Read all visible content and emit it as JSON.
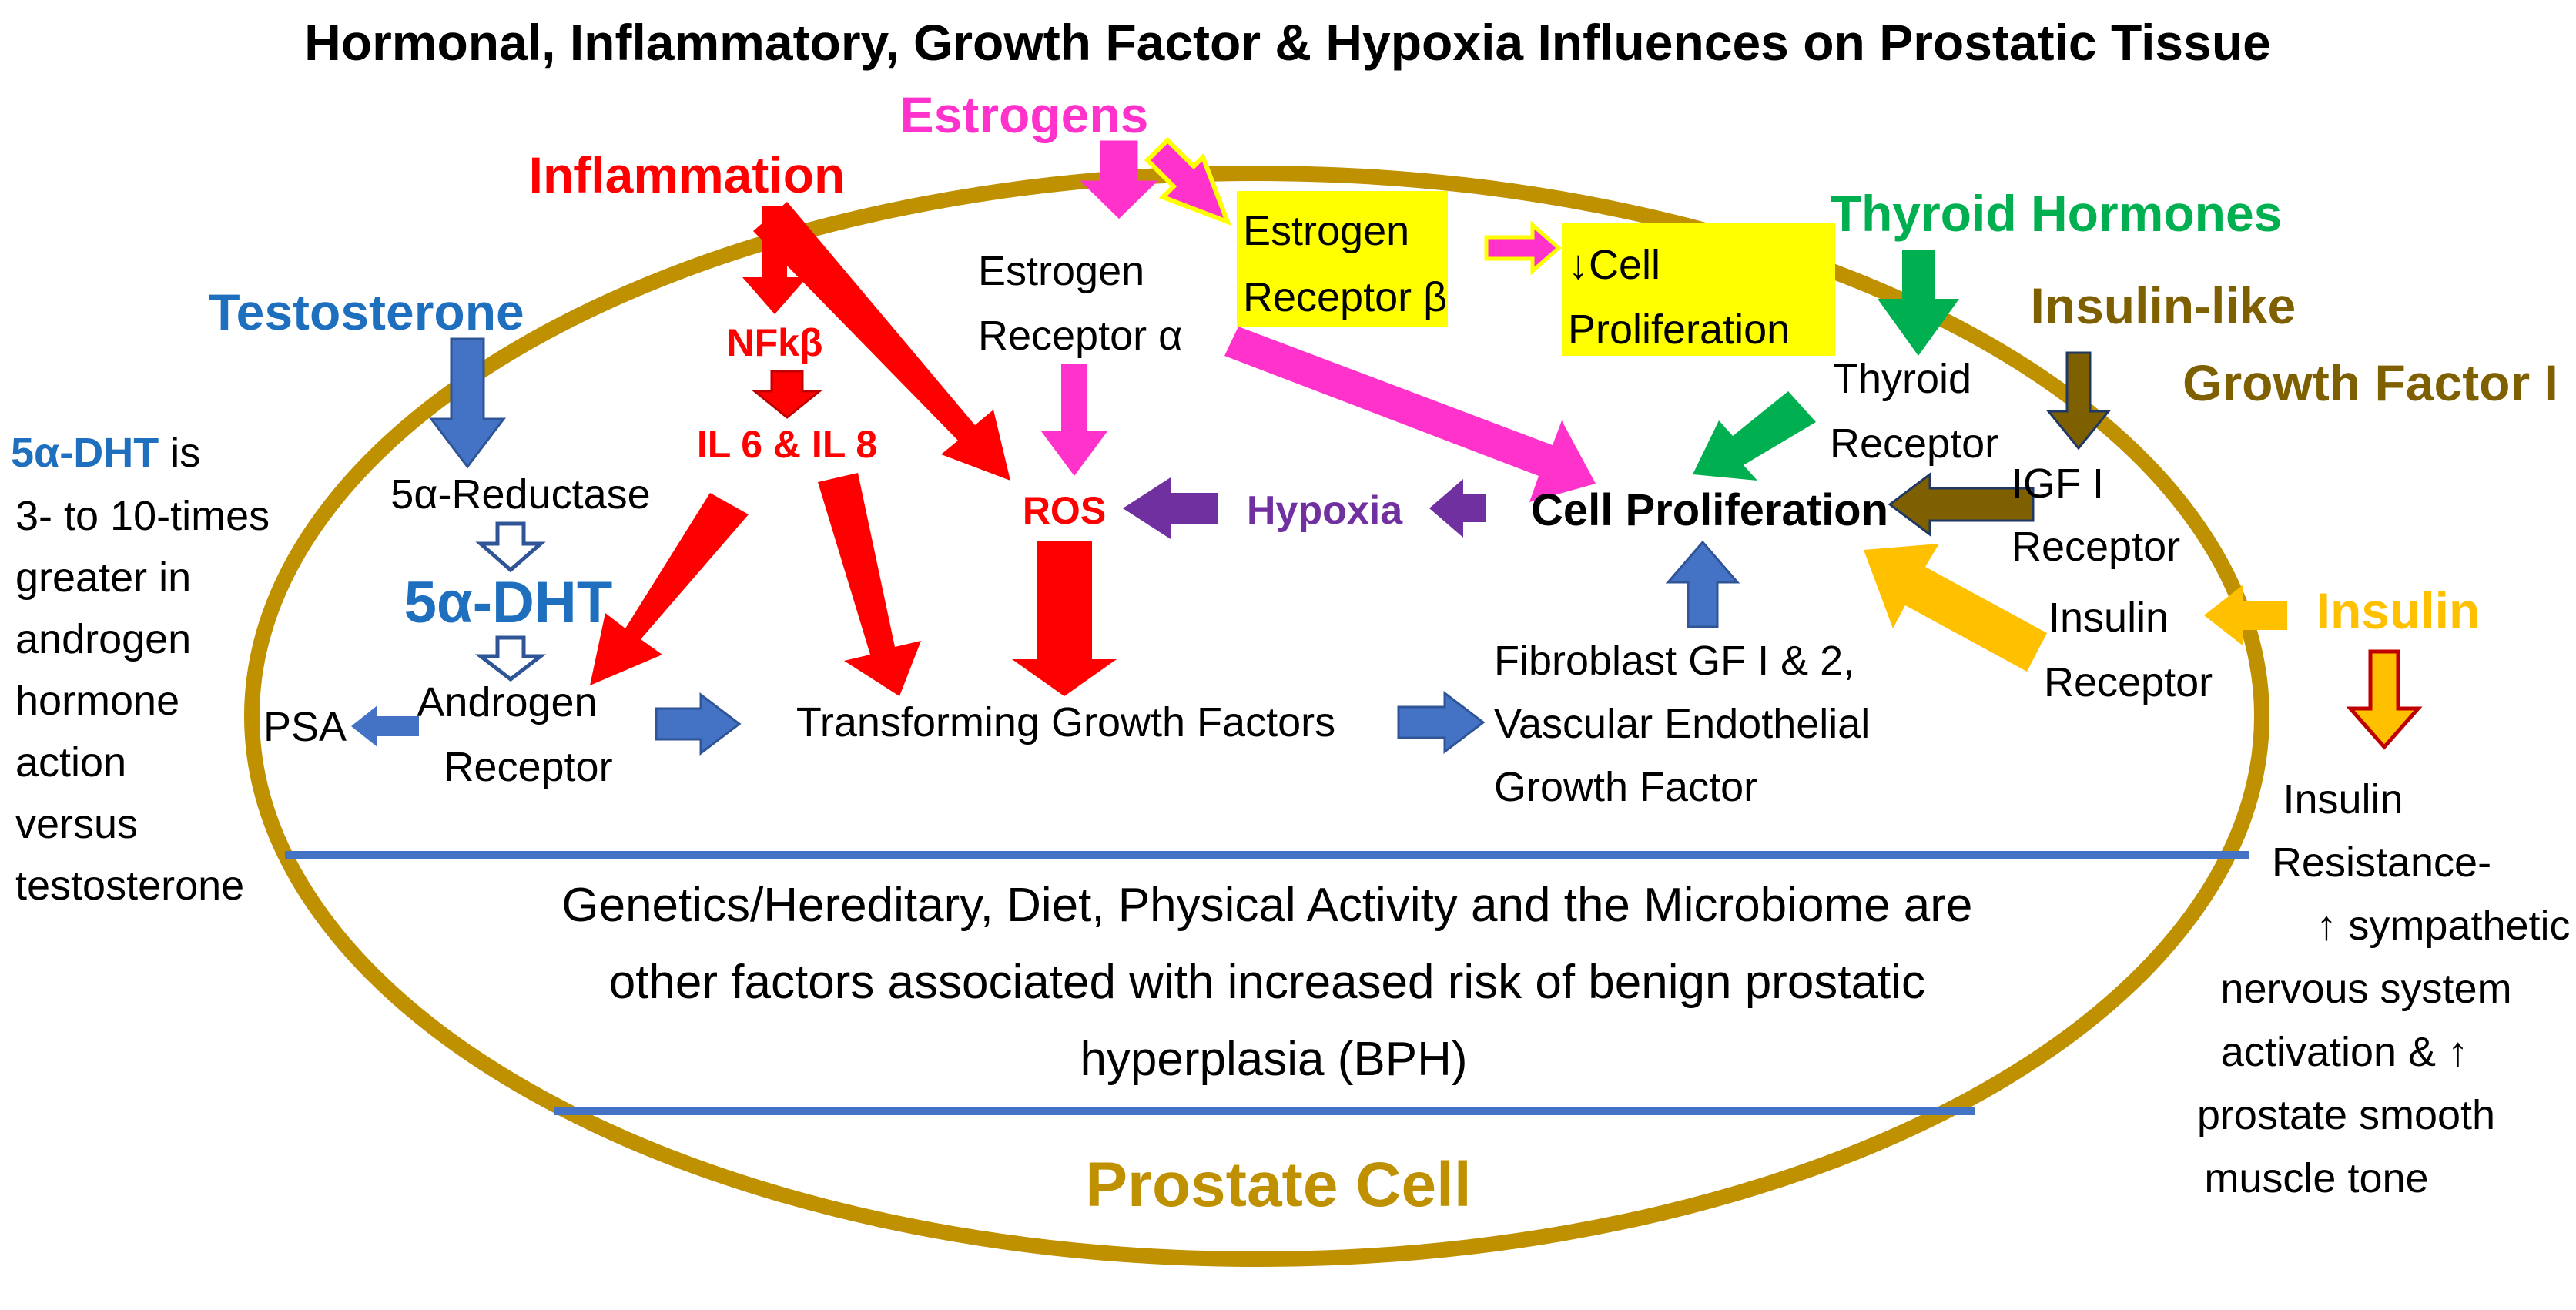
{
  "title": "Hormonal, Inflammatory, Growth Factor & Hypoxia Influences on Prostatic Tissue",
  "colors": {
    "estrogen": "#ff33cc",
    "inflammation": "#ff0000",
    "testosterone": "#1f6fbf",
    "thyroid": "#00b050",
    "igf": "#7f6000",
    "insulin": "#ffc000",
    "hypoxia": "#7030a0",
    "blue_arrow": "#4472c4",
    "cell_border": "#bf9000",
    "highlight": "#ffff00"
  },
  "sources": {
    "estrogens": "Estrogens",
    "inflammation": "Inflammation",
    "testosterone": "Testosterone",
    "thyroid": "Thyroid Hormones",
    "igf": [
      "Insulin-like",
      "Growth Factor I"
    ],
    "insulin": "Insulin"
  },
  "nodes": {
    "estrogen_receptor_alpha": [
      "Estrogen",
      "Receptor α"
    ],
    "estrogen_receptor_beta": [
      "Estrogen",
      "Receptor β"
    ],
    "decreased_proliferation": [
      "↓Cell",
      "Proliferation"
    ],
    "nfkb": "NFkβ",
    "interleukins": "IL 6 & IL 8",
    "ros": "ROS",
    "hypoxia": "Hypoxia",
    "cell_proliferation": "Cell Proliferation",
    "thyroid_receptor": [
      "Thyroid",
      "Receptor"
    ],
    "igf_receptor": [
      "IGF I",
      "Receptor"
    ],
    "insulin_receptor": [
      "Insulin",
      "Receptor"
    ],
    "reductase": "5α-Reductase",
    "dht": "5α-DHT",
    "androgen_receptor": [
      "Androgen",
      "Receptor"
    ],
    "psa": "PSA",
    "tgf": "Transforming Growth Factors",
    "fgf_vegf": [
      "Fibroblast GF I & 2,",
      "Vascular Endothelial",
      "Growth Factor"
    ]
  },
  "dht_note": {
    "lead": "5α-DHT",
    "lead_suffix": " is",
    "lines": [
      "3- to 10-times",
      "greater in",
      "androgen",
      "hormone",
      "action",
      "versus",
      "testosterone"
    ]
  },
  "insulin_note": [
    "Insulin",
    "Resistance-",
    "↑ sympathetic",
    "nervous system",
    "activation & ↑",
    "prostate smooth",
    "muscle tone"
  ],
  "risk_factors": [
    "Genetics/Hereditary, Diet, Physical Activity and the Microbiome are",
    "other factors associated with increased risk of benign prostatic",
    "hyperplasia (BPH)"
  ],
  "cell_label": "Prostate Cell"
}
